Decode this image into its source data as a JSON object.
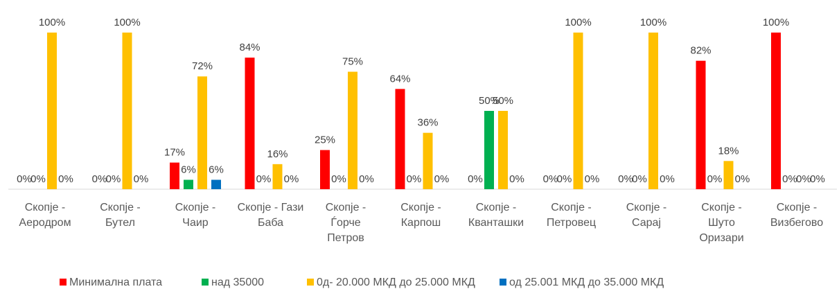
{
  "chart_data": {
    "type": "bar",
    "categories": [
      "Скопје - Аеродром",
      "Скопје - Бутел",
      "Скопје - Чаир",
      "Скопје - Гази Баба",
      "Скопје - Ѓорче Петров",
      "Скопје - Карпош",
      "Скопје - Кванташки",
      "Скопје - Петровец",
      "Скопје - Сарај",
      "Скопје - Шуто Оризари",
      "Скопје - Визбегово"
    ],
    "series": [
      {
        "name": "Минимална плата",
        "color": "#ff0000",
        "values": [
          0,
          0,
          17,
          84,
          25,
          64,
          0,
          0,
          0,
          82,
          100
        ],
        "value_labels": [
          "0%",
          "0%",
          "17%",
          "84%",
          "25%",
          "64%",
          "0%",
          "0%",
          "0%",
          "82%",
          "100%"
        ]
      },
      {
        "name": "над 35000",
        "color": "#00b050",
        "values": [
          0,
          0,
          6,
          0,
          0,
          0,
          50,
          0,
          0,
          0,
          0
        ],
        "value_labels": [
          "0%",
          "0%",
          "6%",
          "0%",
          "0%",
          "0%",
          "50%",
          "0%",
          "0%",
          "0%",
          "0%"
        ]
      },
      {
        "name": "0д- 20.000 МКД до 25.000 МКД",
        "color": "#ffc000",
        "values": [
          100,
          100,
          72,
          16,
          75,
          36,
          50,
          100,
          100,
          18,
          0
        ],
        "value_labels": [
          "100%",
          "100%",
          "72%",
          "16%",
          "75%",
          "36%",
          "50%",
          "100%",
          "100%",
          "18%",
          "0%"
        ]
      },
      {
        "name": "од 25.001 МКД до 35.000 МКД",
        "color": "#0070c0",
        "values": [
          0,
          0,
          6,
          0,
          0,
          0,
          0,
          0,
          0,
          0,
          0
        ],
        "value_labels": [
          "0%",
          "0%",
          "6%",
          "0%",
          "0%",
          "0%",
          "0%",
          "0%",
          "0%",
          "0%",
          "0%"
        ]
      }
    ]
  }
}
